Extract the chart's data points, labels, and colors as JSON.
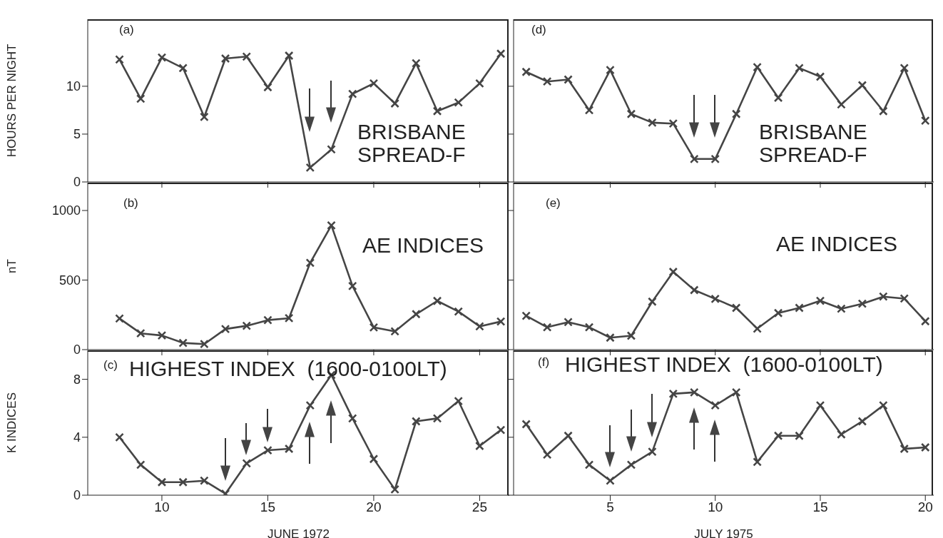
{
  "chart_data": [
    {
      "type": "line",
      "ylabel": "HOURS PER NIGHT",
      "annotations": [
        "(a)",
        "BRISBANE\nSPREAD-F"
      ],
      "x": [
        8,
        9,
        10,
        11,
        12,
        13,
        14,
        15,
        16,
        17,
        18,
        19,
        20,
        21,
        22,
        23,
        24,
        25,
        26
      ],
      "series": [
        {
          "color": "#454545",
          "values": [
            12.8,
            8.7,
            13.0,
            11.9,
            6.8,
            12.9,
            13.1,
            9.9,
            13.2,
            1.5,
            3.4,
            9.2,
            10.3,
            8.2,
            12.4,
            7.4,
            8.3,
            10.3,
            13.4
          ]
        }
      ],
      "xlim": [
        6.5,
        26.4
      ],
      "xticks": [
        10,
        15,
        20,
        25
      ],
      "ylim": [
        0,
        17
      ],
      "yticks": [
        0,
        5,
        10
      ],
      "tick_labels": "y",
      "marker": "cross",
      "line_style": "solid",
      "grid": false,
      "legend": false
    },
    {
      "type": "line",
      "annotations": [
        "(d)",
        "BRISBANE\nSPREAD-F"
      ],
      "x": [
        1,
        2,
        3,
        4,
        5,
        6,
        7,
        8,
        9,
        10,
        11,
        12,
        13,
        14,
        15,
        16,
        17,
        18,
        19,
        20
      ],
      "series": [
        {
          "color": "#454545",
          "values": [
            11.5,
            10.5,
            10.7,
            7.5,
            11.7,
            7.1,
            6.2,
            6.1,
            2.4,
            2.4,
            7.1,
            12.0,
            8.8,
            11.9,
            11.0,
            8.1,
            10.1,
            7.4,
            11.9,
            6.4
          ]
        }
      ],
      "xlim": [
        0.4,
        20.4
      ],
      "xticks": [
        5,
        10,
        15,
        20
      ],
      "ylim": [
        0,
        17
      ],
      "yticks": [
        0,
        5,
        10
      ],
      "tick_labels": false,
      "marker": "cross",
      "line_style": "solid",
      "grid": false,
      "legend": false
    },
    {
      "type": "line",
      "ylabel": "nT",
      "annotations": [
        "(b)",
        "AE INDICES"
      ],
      "x": [
        8,
        9,
        10,
        11,
        12,
        13,
        14,
        15,
        16,
        17,
        18,
        19,
        20,
        21,
        22,
        23,
        24,
        25,
        26
      ],
      "series": [
        {
          "color": "#454545",
          "values": [
            224,
            117,
            102,
            48,
            40,
            148,
            171,
            212,
            226,
            624,
            893,
            457,
            160,
            131,
            255,
            350,
            274,
            167,
            202
          ]
        }
      ],
      "xlim": [
        6.5,
        26.4
      ],
      "xticks": [
        10,
        15,
        20,
        25
      ],
      "ylim": [
        0,
        1200
      ],
      "yticks": [
        0,
        500,
        1000
      ],
      "tick_labels": "y",
      "marker": "cross",
      "line_style": "solid",
      "grid": false,
      "legend": false
    },
    {
      "type": "line",
      "annotations": [
        "(e)",
        "AE INDICES"
      ],
      "x": [
        1,
        2,
        3,
        4,
        5,
        6,
        7,
        8,
        9,
        10,
        11,
        12,
        13,
        14,
        15,
        16,
        17,
        18,
        19,
        20
      ],
      "series": [
        {
          "color": "#454545",
          "values": [
            243,
            161,
            198,
            161,
            86,
            100,
            345,
            559,
            428,
            365,
            300,
            151,
            263,
            300,
            351,
            294,
            330,
            381,
            367,
            204
          ]
        }
      ],
      "xlim": [
        0.4,
        20.4
      ],
      "xticks": [
        5,
        10,
        15,
        20
      ],
      "ylim": [
        0,
        1200
      ],
      "yticks": [
        0,
        500,
        1000
      ],
      "tick_labels": false,
      "marker": "cross",
      "line_style": "solid",
      "grid": false,
      "legend": false
    },
    {
      "type": "line",
      "ylabel": "K INDICES",
      "xlabel": "JUNE 1972",
      "annotations": [
        "(c)",
        "HIGHEST INDEX  (1600-0100LT)"
      ],
      "x": [
        8,
        9,
        10,
        11,
        12,
        13,
        14,
        15,
        16,
        17,
        18,
        19,
        20,
        21,
        22,
        23,
        24,
        25,
        26
      ],
      "series": [
        {
          "color": "#454545",
          "values": [
            4.0,
            2.1,
            0.9,
            0.9,
            1.0,
            0.1,
            2.2,
            3.1,
            3.2,
            6.2,
            8.3,
            5.3,
            2.5,
            0.4,
            5.1,
            5.3,
            6.5,
            3.4,
            4.5
          ]
        }
      ],
      "xlim": [
        6.5,
        26.4
      ],
      "xticks": [
        10,
        15,
        20,
        25
      ],
      "ylim": [
        0,
        10
      ],
      "yticks": [
        0,
        4,
        8
      ],
      "marker": "cross",
      "line_style": "solid",
      "grid": false,
      "legend": false
    },
    {
      "type": "line",
      "xlabel": "JULY 1975",
      "annotations": [
        "(f)",
        "HIGHEST INDEX  (1600-0100LT)"
      ],
      "x": [
        1,
        2,
        3,
        4,
        5,
        6,
        7,
        8,
        9,
        10,
        11,
        12,
        13,
        14,
        15,
        16,
        17,
        18,
        19,
        20
      ],
      "series": [
        {
          "color": "#454545",
          "values": [
            4.9,
            2.8,
            4.1,
            2.1,
            1.0,
            2.1,
            3.0,
            7.0,
            7.1,
            6.2,
            7.1,
            2.3,
            4.1,
            4.1,
            6.2,
            4.2,
            5.1,
            6.2,
            3.2,
            3.3
          ]
        }
      ],
      "xlim": [
        0.4,
        20.4
      ],
      "xticks": [
        5,
        10,
        15,
        20
      ],
      "ylim": [
        0,
        10
      ],
      "yticks": [
        0,
        4,
        8
      ],
      "tick_labels": "x",
      "marker": "cross",
      "line_style": "solid",
      "grid": false,
      "legend": false
    }
  ]
}
